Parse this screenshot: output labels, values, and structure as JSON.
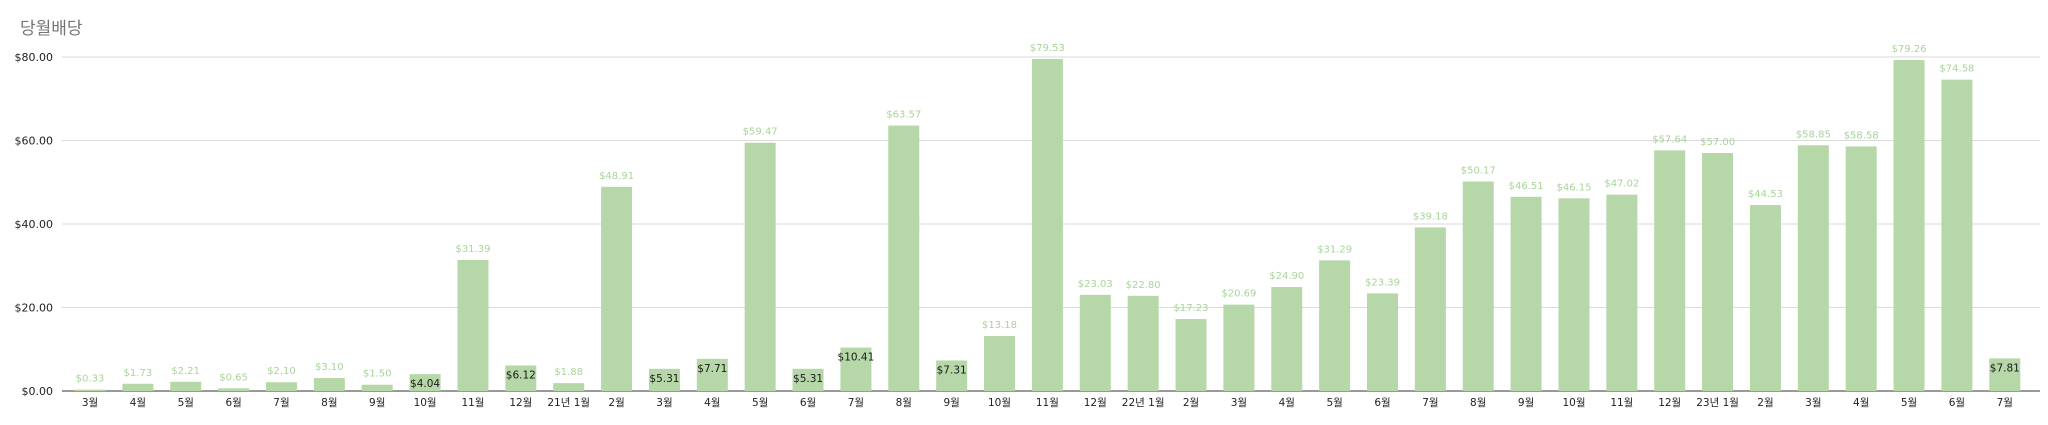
{
  "chart_data": {
    "type": "bar",
    "title": "당월배당",
    "xlabel": "",
    "ylabel": "",
    "ylim": [
      0,
      80
    ],
    "yticks": [
      "$0.00",
      "$20.00",
      "$40.00",
      "$60.00",
      "$80.00"
    ],
    "ytick_values": [
      0,
      20,
      40,
      60,
      80
    ],
    "grid": true,
    "legend": "none",
    "bar_color": "#b6d7a8",
    "categories": [
      "3월",
      "4월",
      "5월",
      "6월",
      "7월",
      "8월",
      "9월",
      "10월",
      "11월",
      "12월",
      "21년 1월",
      "2월",
      "3월",
      "4월",
      "5월",
      "6월",
      "7월",
      "8월",
      "9월",
      "10월",
      "11월",
      "12월",
      "22년 1월",
      "2월",
      "3월",
      "4월",
      "5월",
      "6월",
      "7월",
      "8월",
      "9월",
      "10월",
      "11월",
      "12월",
      "23년 1월",
      "2월",
      "3월",
      "4월",
      "5월",
      "6월",
      "7월"
    ],
    "values": [
      0.33,
      1.73,
      2.21,
      0.65,
      2.1,
      3.1,
      1.5,
      4.04,
      31.39,
      6.12,
      1.88,
      48.91,
      5.31,
      7.71,
      59.47,
      5.31,
      10.41,
      63.57,
      7.31,
      13.18,
      79.53,
      23.03,
      22.8,
      17.23,
      20.69,
      24.9,
      31.29,
      23.39,
      39.18,
      50.17,
      46.51,
      46.15,
      47.02,
      57.64,
      57.0,
      44.53,
      58.85,
      58.58,
      79.26,
      74.58,
      7.81
    ],
    "data_labels": [
      "$0.33",
      "$1.73",
      "$2.21",
      "$0.65",
      "$2.10",
      "$3.10",
      "$1.50",
      "$4.04",
      "$31.39",
      "$6.12",
      "$1.88",
      "$48.91",
      "$5.31",
      "$7.71",
      "$59.47",
      "$5.31",
      "$10.41",
      "$63.57",
      "$7.31",
      "$13.18",
      "$79.53",
      "$23.03",
      "$22.80",
      "$17.23",
      "$20.69",
      "$24.90",
      "$31.29",
      "$23.39",
      "$39.18",
      "$50.17",
      "$46.51",
      "$46.15",
      "$47.02",
      "$57.64",
      "$57.00",
      "$44.53",
      "$58.85",
      "$58.58",
      "$79.26",
      "$74.58",
      "$7.81"
    ]
  }
}
